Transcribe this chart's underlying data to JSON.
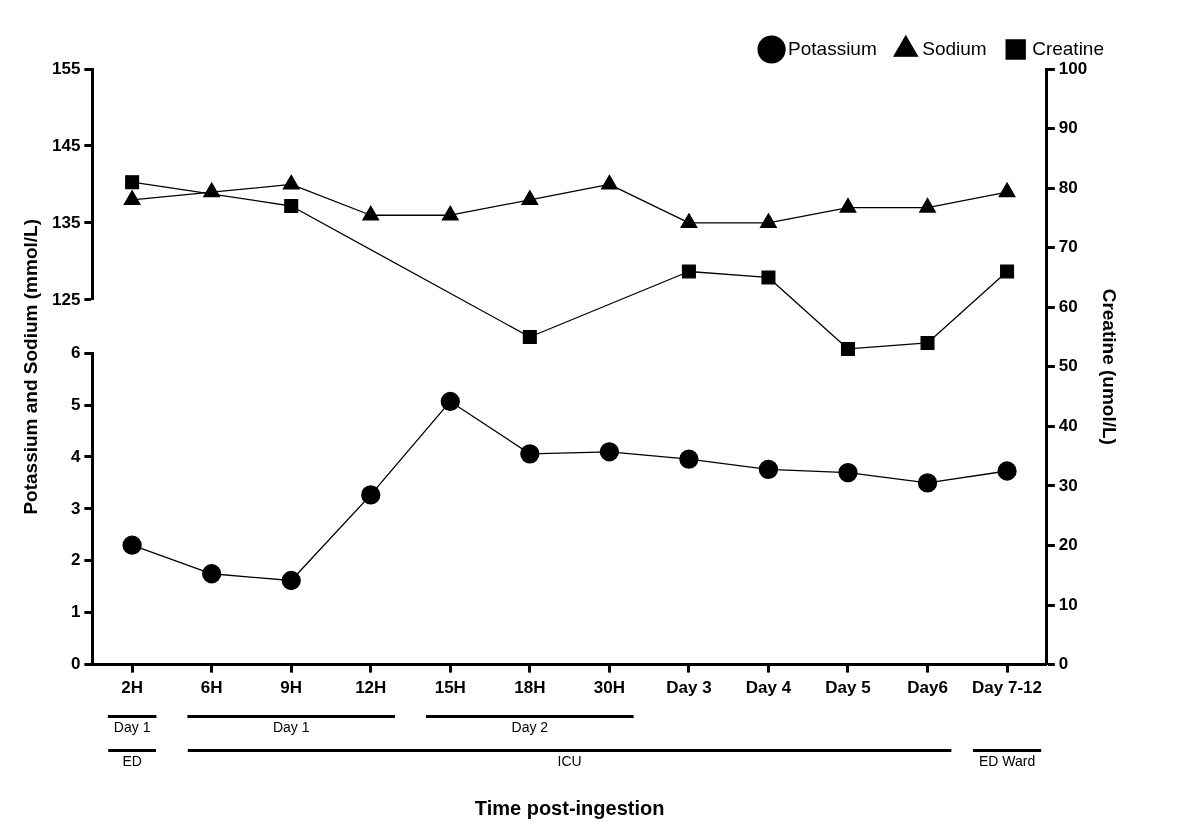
{
  "chart_data": {
    "type": "line",
    "xlabel": "Time post-ingestion",
    "ylabel": "Creatine (umol/L)",
    "y2label": "Potassium and Sodium (mmol/L)",
    "categories": [
      "2H",
      "6H",
      "9H",
      "12H",
      "15H",
      "18H",
      "30H",
      "Day 3",
      "Day 4",
      "Day 5",
      "Day6",
      "Day 7-12"
    ],
    "series": [
      {
        "name": "Potassium",
        "color": "#000000",
        "marker": "circle",
        "axis": "y2",
        "values": [
          2.3,
          1.75,
          1.62,
          3.27,
          5.07,
          4.06,
          4.1,
          3.96,
          3.76,
          3.7,
          3.5,
          3.73
        ]
      },
      {
        "name": "Sodium",
        "color": "#000000",
        "marker": "triangle",
        "axis": "y3",
        "values": [
          138,
          139,
          140,
          136,
          136,
          138,
          140,
          135,
          135,
          137,
          137,
          139
        ]
      },
      {
        "name": "Creatine",
        "color": "#000000",
        "marker": "square",
        "values": [
          81,
          null,
          77,
          null,
          null,
          55,
          null,
          66,
          65,
          53,
          54,
          66
        ]
      }
    ],
    "ylim": [
      0,
      100
    ],
    "yticks": [
      0,
      10,
      20,
      30,
      40,
      50,
      60,
      70,
      80,
      90,
      100
    ],
    "y2lim": [
      0,
      6
    ],
    "y2ticks": [
      0,
      1,
      2,
      3,
      4,
      5,
      6
    ],
    "y3lim": [
      125,
      155
    ],
    "y3ticks": [
      125,
      135,
      145,
      155
    ],
    "grid": false,
    "legend": "top right",
    "annotations": [
      "Day 1",
      "Day 1",
      "Day 2",
      "ED",
      "ICU",
      "ED Ward"
    ]
  }
}
